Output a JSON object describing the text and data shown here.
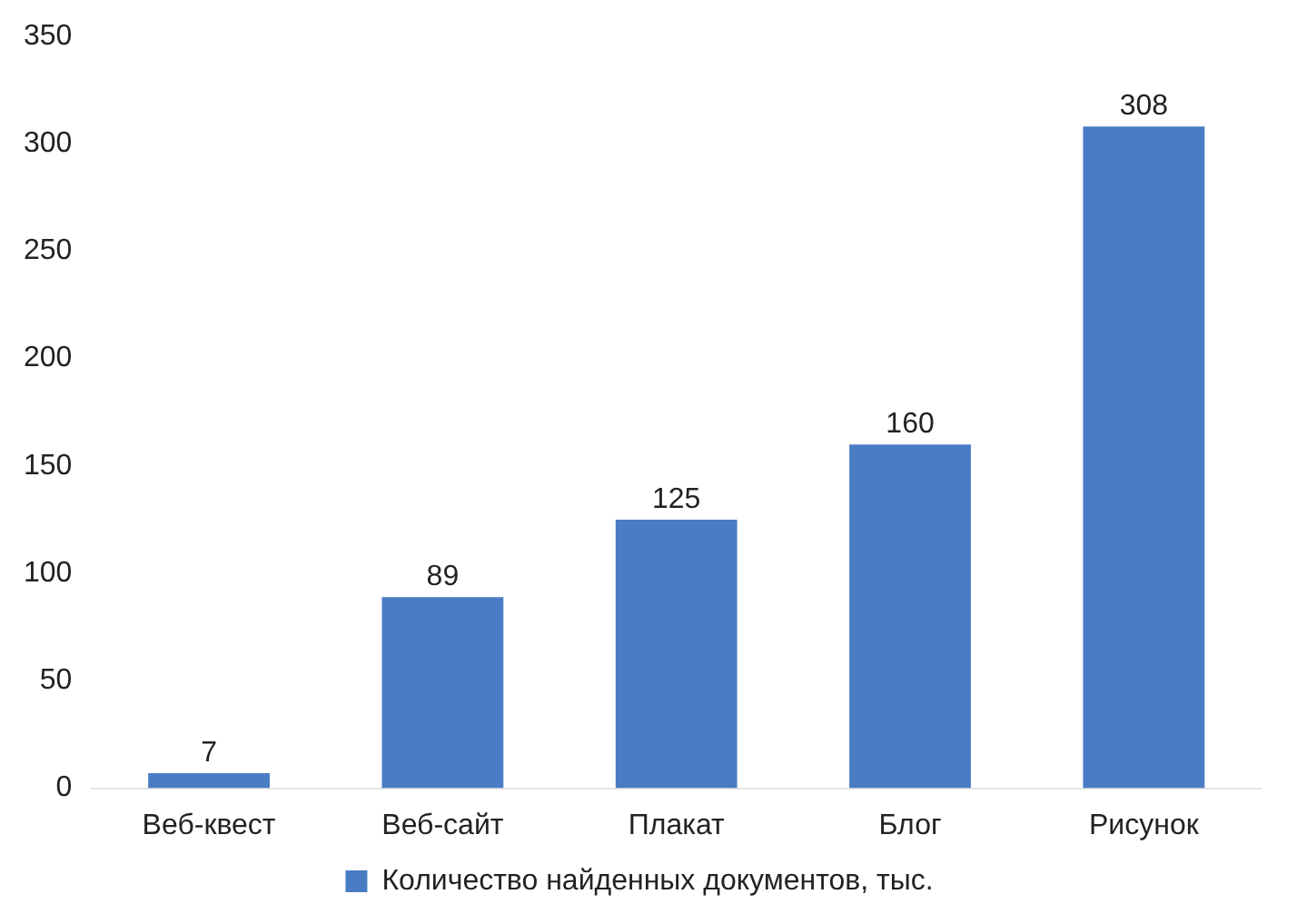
{
  "chart_data": {
    "type": "bar",
    "categories": [
      "Веб-квест",
      "Веб-сайт",
      "Плакат",
      "Блог",
      "Рисунок"
    ],
    "series": [
      {
        "name": "Количество найденных документов, тыс.",
        "color": "#4a7cc4",
        "values": [
          7,
          89,
          125,
          160,
          308
        ]
      }
    ],
    "ylim": [
      0,
      350
    ],
    "yticks": [
      0,
      50,
      100,
      150,
      200,
      250,
      300,
      350
    ],
    "grid": false,
    "legend": "bottom",
    "data_labels": true
  }
}
